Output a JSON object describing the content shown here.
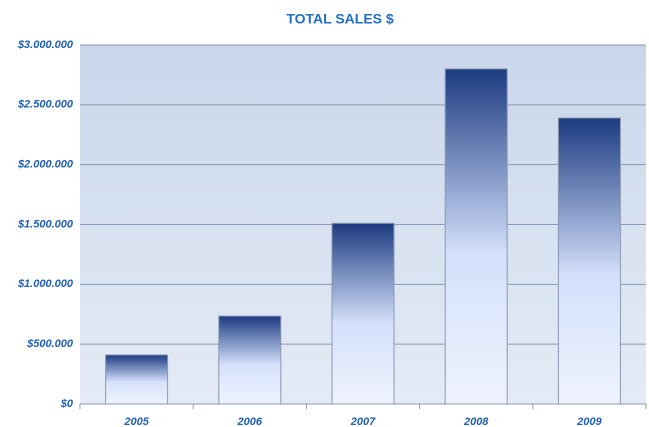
{
  "chart_data": {
    "type": "bar",
    "title": "TOTAL SALES $",
    "categories": [
      "2005",
      "2006",
      "2007",
      "2008",
      "2009"
    ],
    "values": [
      410000,
      735000,
      1510000,
      2800000,
      2390000
    ],
    "color": "#1b3a80",
    "ylim": [
      0,
      3000000
    ],
    "yticks": [
      {
        "value": 0,
        "label": "$0"
      },
      {
        "value": 500000,
        "label": "$500.000"
      },
      {
        "value": 1000000,
        "label": "$1.000.000"
      },
      {
        "value": 1500000,
        "label": "$1.500.000"
      },
      {
        "value": 2000000,
        "label": "$2.000.000"
      },
      {
        "value": 2500000,
        "label": "$2.500.000"
      },
      {
        "value": 3000000,
        "label": "$3.000.000"
      }
    ],
    "grid": true
  }
}
